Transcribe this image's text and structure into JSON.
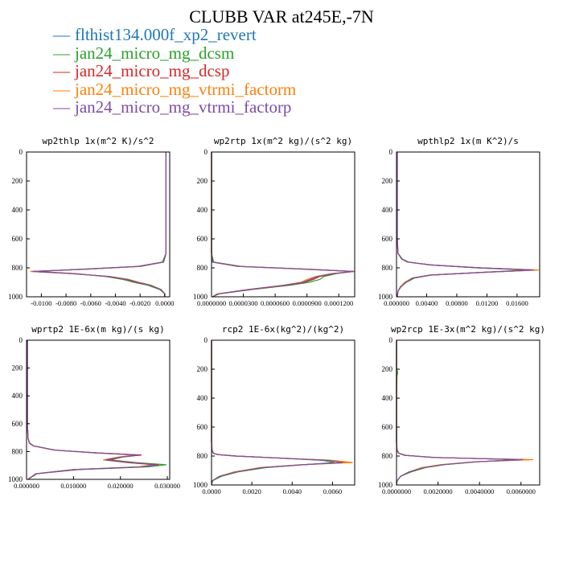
{
  "title": "CLUBB VAR at245E,-7N",
  "legend": [
    {
      "label": "flthist134.000f_xp2_revert",
      "color": "#1f77b4"
    },
    {
      "label": "jan24_micro_mg_dcsm",
      "color": "#2ca02c"
    },
    {
      "label": "jan24_micro_mg_dcsp",
      "color": "#d62728"
    },
    {
      "label": "jan24_micro_mg_vtrmi_factorm",
      "color": "#ff7f0e"
    },
    {
      "label": "jan24_micro_mg_vtrmi_factorp",
      "color": "#7b4ea6"
    }
  ],
  "chart_data": [
    {
      "type": "line",
      "title": "wp2thlp  1x(m^2 K)/s^2",
      "xlim": [
        -0.0112,
        0.0004
      ],
      "ylim": [
        1000,
        0
      ],
      "xticks": [
        -0.01,
        -0.008,
        -0.006,
        -0.004,
        -0.002,
        0
      ],
      "xticklabels": [
        "-0.0100",
        "-0.0080",
        "-0.0060",
        "-0.0040",
        "-0.0020",
        "0.0000"
      ],
      "yticks": [
        0,
        200,
        400,
        600,
        800,
        1000
      ],
      "yticklabels": [
        "0",
        "200",
        "400",
        "600",
        "800",
        "1000"
      ],
      "y": [
        0,
        100,
        300,
        500,
        700,
        760,
        790,
        810,
        825,
        840,
        860,
        880,
        900,
        920,
        950,
        980,
        1000
      ],
      "series": [
        {
          "values": [
            0.0001,
            0.0001,
            0.0001,
            0.0001,
            0.0001,
            -0.0001,
            -0.002,
            -0.0065,
            -0.0108,
            -0.0075,
            -0.0045,
            -0.003,
            -0.0022,
            -0.0012,
            -0.0003,
            0,
            0
          ]
        },
        {
          "values": [
            0.0001,
            0.0001,
            0.0001,
            0.0001,
            0.0001,
            -0.0002,
            -0.0022,
            -0.007,
            -0.0104,
            -0.0072,
            -0.0048,
            -0.0034,
            -0.0025,
            -0.0014,
            -0.0004,
            0,
            0
          ]
        },
        {
          "values": [
            0.0001,
            0.0001,
            0.0001,
            0.0001,
            0.0001,
            -0.0001,
            -0.0021,
            -0.0066,
            -0.0106,
            -0.0074,
            -0.0046,
            -0.0031,
            -0.0023,
            -0.0012,
            -0.0003,
            0,
            0
          ]
        },
        {
          "values": [
            0.0001,
            0.0001,
            0.0001,
            0.0001,
            0.0001,
            -0.0001,
            -0.0019,
            -0.0064,
            -0.0109,
            -0.0077,
            -0.0044,
            -0.0029,
            -0.0021,
            -0.0011,
            -0.0003,
            0,
            0
          ]
        },
        {
          "values": [
            0.0001,
            0.0001,
            0.0001,
            0.0001,
            0.0001,
            -0.0001,
            -0.002,
            -0.0067,
            -0.0107,
            -0.0076,
            -0.0045,
            -0.003,
            -0.0022,
            -0.0012,
            -0.0003,
            0,
            0
          ]
        }
      ]
    },
    {
      "type": "line",
      "title": "wp2rtp  1x(m^2 kg)/(s^2 kg)",
      "xlim": [
        0,
        0.000135
      ],
      "ylim": [
        1000,
        0
      ],
      "xticks": [
        0,
        3e-05,
        6e-05,
        9e-05,
        0.00012
      ],
      "xticklabels": [
        "0.0000000",
        "0.0000300",
        "0.0000600",
        "0.0000900",
        "0.0001200"
      ],
      "yticks": [
        0,
        200,
        400,
        600,
        800,
        1000
      ],
      "yticklabels": [
        "0",
        "200",
        "400",
        "600",
        "800",
        "1000"
      ],
      "y": [
        0,
        100,
        300,
        500,
        700,
        760,
        790,
        810,
        825,
        840,
        860,
        880,
        900,
        920,
        950,
        980,
        1000
      ],
      "series": [
        {
          "values": [
            0,
            0,
            0,
            0,
            0,
            1e-06,
            2.5e-05,
            9e-05,
            0.000134,
            0.000115,
            0.0001,
            9.4e-05,
            8.7e-05,
            7e-05,
            3.5e-05,
            6e-06,
            1e-06
          ]
        },
        {
          "values": [
            0,
            0,
            0,
            0,
            0,
            2e-06,
            2.8e-05,
            9.5e-05,
            0.000133,
            0.000118,
            0.000106,
            0.000102,
            9.2e-05,
            7.4e-05,
            3.8e-05,
            7e-06,
            1e-06
          ]
        },
        {
          "values": [
            0,
            0,
            0,
            0,
            0,
            1e-06,
            2.6e-05,
            9.2e-05,
            0.000134,
            0.000116,
            0.000102,
            9.6e-05,
            8.8e-05,
            7.1e-05,
            3.6e-05,
            6e-06,
            1e-06
          ]
        },
        {
          "values": [
            0,
            0,
            0,
            0,
            0,
            1e-06,
            2.4e-05,
            8.8e-05,
            0.000135,
            0.000113,
            9.8e-05,
            9e-05,
            8.4e-05,
            6.8e-05,
            3.4e-05,
            5e-06,
            1e-06
          ]
        },
        {
          "values": [
            0,
            0,
            0,
            0,
            0,
            1e-06,
            2.5e-05,
            9e-05,
            0.000134,
            0.000114,
            0.0001,
            9.3e-05,
            8.6e-05,
            6.9e-05,
            3.5e-05,
            6e-06,
            1e-06
          ]
        }
      ]
    },
    {
      "type": "line",
      "title": "wpthlp2  1x(m K^2)/s",
      "xlim": [
        0,
        0.019
      ],
      "ylim": [
        1000,
        0
      ],
      "xticks": [
        0,
        0.004,
        0.008,
        0.012,
        0.016
      ],
      "xticklabels": [
        "0.000000",
        "0.00400",
        "0.00800",
        "0.01200",
        "0.01600"
      ],
      "yticks": [
        0,
        200,
        400,
        600,
        800,
        1000
      ],
      "yticklabels": [
        "0",
        "200",
        "400",
        "600",
        "800",
        "1000"
      ],
      "y": [
        0,
        200,
        400,
        600,
        700,
        740,
        760,
        780,
        800,
        815,
        830,
        850,
        870,
        900,
        930,
        960,
        1000
      ],
      "series": [
        {
          "values": [
            0.0001,
            0.0001,
            0.0001,
            0.0001,
            0.0002,
            0.0007,
            0.0015,
            0.0045,
            0.011,
            0.0185,
            0.012,
            0.0045,
            0.0022,
            0.0012,
            0.0006,
            0.0002,
            0.0001
          ]
        },
        {
          "values": [
            0.0001,
            0.0001,
            0.0001,
            0.0001,
            0.0002,
            0.0008,
            0.0016,
            0.0046,
            0.0105,
            0.0172,
            0.0118,
            0.0046,
            0.0024,
            0.0013,
            0.0006,
            0.0002,
            0.0001
          ]
        },
        {
          "values": [
            0.0001,
            0.0001,
            0.0001,
            0.0001,
            0.0002,
            0.0007,
            0.0015,
            0.0045,
            0.011,
            0.0186,
            0.0121,
            0.0045,
            0.0022,
            0.0012,
            0.0006,
            0.0002,
            0.0001
          ]
        },
        {
          "values": [
            0.0001,
            0.0001,
            0.0001,
            0.0001,
            0.0002,
            0.0007,
            0.0014,
            0.0044,
            0.0112,
            0.0189,
            0.0123,
            0.0044,
            0.0021,
            0.0011,
            0.0005,
            0.0002,
            0.0001
          ]
        },
        {
          "values": [
            0.0001,
            0.0001,
            0.0001,
            0.0001,
            0.0002,
            0.0007,
            0.0015,
            0.0045,
            0.0109,
            0.0183,
            0.012,
            0.0045,
            0.0022,
            0.0012,
            0.0006,
            0.0002,
            0.0001
          ]
        }
      ]
    },
    {
      "type": "line",
      "title": "wprtp2  1E-6x(m kg)/(s kg)",
      "xlim": [
        0,
        0.0305
      ],
      "ylim": [
        1000,
        0
      ],
      "xticks": [
        0,
        0.01,
        0.02,
        0.03
      ],
      "xticklabels": [
        "0.000000",
        "0.010000",
        "0.020000",
        "0.030000"
      ],
      "yticks": [
        0,
        200,
        400,
        600,
        800,
        1000
      ],
      "yticklabels": [
        "0",
        "200",
        "400",
        "600",
        "800",
        "1000"
      ],
      "y": [
        0,
        200,
        400,
        600,
        700,
        740,
        760,
        790,
        810,
        825,
        840,
        860,
        880,
        895,
        910,
        930,
        960,
        1000
      ],
      "series": [
        {
          "values": [
            0.0002,
            0.0002,
            0.0002,
            0.0002,
            0.0003,
            0.0006,
            0.0015,
            0.006,
            0.015,
            0.024,
            0.02,
            0.017,
            0.022,
            0.0275,
            0.024,
            0.01,
            0.002,
            0.0003
          ]
        },
        {
          "values": [
            0.0002,
            0.0002,
            0.0002,
            0.0002,
            0.0003,
            0.0007,
            0.0016,
            0.0062,
            0.0148,
            0.0235,
            0.0205,
            0.0178,
            0.0235,
            0.0298,
            0.026,
            0.011,
            0.0022,
            0.0003
          ]
        },
        {
          "values": [
            0.0002,
            0.0002,
            0.0002,
            0.0002,
            0.0003,
            0.0006,
            0.0015,
            0.0061,
            0.0152,
            0.0245,
            0.0202,
            0.0172,
            0.0225,
            0.0282,
            0.0245,
            0.0102,
            0.002,
            0.0003
          ]
        },
        {
          "values": [
            0.0002,
            0.0002,
            0.0002,
            0.0002,
            0.0003,
            0.0006,
            0.0014,
            0.0058,
            0.0145,
            0.0232,
            0.0195,
            0.0163,
            0.0215,
            0.0272,
            0.0238,
            0.0098,
            0.0019,
            0.0003
          ]
        },
        {
          "values": [
            0.0002,
            0.0002,
            0.0002,
            0.0002,
            0.0003,
            0.0006,
            0.0015,
            0.006,
            0.015,
            0.0238,
            0.02,
            0.0168,
            0.022,
            0.0278,
            0.0242,
            0.0101,
            0.002,
            0.0003
          ]
        }
      ]
    },
    {
      "type": "line",
      "title": "rcp2  1E-6x(kg^2)/(kg^2)",
      "xlim": [
        0,
        0.0071
      ],
      "ylim": [
        1000,
        0
      ],
      "xticks": [
        0,
        0.002,
        0.004,
        0.006
      ],
      "xticklabels": [
        "0.0000",
        "0.0020",
        "0.0040",
        "0.0060"
      ],
      "yticks": [
        0,
        200,
        400,
        600,
        800,
        1000
      ],
      "yticklabels": [
        "0",
        "200",
        "400",
        "600",
        "800",
        "1000"
      ],
      "y": [
        0,
        200,
        400,
        600,
        700,
        760,
        780,
        790,
        800,
        815,
        830,
        845,
        860,
        880,
        910,
        940,
        970,
        1000
      ],
      "series": [
        {
          "values": [
            0,
            0,
            0,
            0,
            0,
            2e-05,
            8e-05,
            0.0003,
            0.0012,
            0.0035,
            0.0058,
            0.0066,
            0.0045,
            0.0025,
            0.0012,
            0.0004,
            5e-05,
            0
          ]
        },
        {
          "values": [
            0,
            0,
            0,
            0,
            0,
            3e-05,
            0.0001,
            0.00035,
            0.00125,
            0.0034,
            0.0055,
            0.0061,
            0.0046,
            0.0027,
            0.0013,
            0.0005,
            6e-05,
            0
          ]
        },
        {
          "values": [
            0,
            0,
            0,
            0,
            0,
            2e-05,
            8e-05,
            0.0003,
            0.0012,
            0.0036,
            0.0059,
            0.0067,
            0.0045,
            0.0025,
            0.0012,
            0.0004,
            5e-05,
            0
          ]
        },
        {
          "values": [
            0,
            0,
            0,
            0,
            0,
            2e-05,
            7e-05,
            0.00028,
            0.0011,
            0.0036,
            0.006,
            0.007,
            0.0044,
            0.0024,
            0.0011,
            0.0004,
            5e-05,
            0
          ]
        },
        {
          "values": [
            0,
            0,
            0,
            0,
            0,
            2e-05,
            8e-05,
            0.0003,
            0.0012,
            0.0035,
            0.0058,
            0.0065,
            0.0045,
            0.0025,
            0.0012,
            0.0004,
            5e-05,
            0
          ]
        }
      ]
    },
    {
      "type": "line",
      "title": "wp2rcp  1E-3x(m^2 kg)/(s^2 kg)",
      "xlim": [
        0,
        0.0069
      ],
      "ylim": [
        1000,
        0
      ],
      "xticks": [
        0,
        0.002,
        0.004,
        0.006
      ],
      "xticklabels": [
        "0.0000000",
        "0.0020000",
        "0.0040000",
        "0.0060000"
      ],
      "yticks": [
        0,
        200,
        400,
        600,
        800,
        1000
      ],
      "yticklabels": [
        "0",
        "200",
        "400",
        "600",
        "800",
        "1000"
      ],
      "y": [
        0,
        200,
        220,
        250,
        400,
        600,
        700,
        760,
        780,
        795,
        810,
        825,
        840,
        860,
        880,
        910,
        940,
        970,
        1000
      ],
      "series": [
        {
          "values": [
            0,
            0,
            0,
            0,
            0,
            0,
            0,
            2e-05,
            0.0001,
            0.0004,
            0.0018,
            0.0062,
            0.0038,
            0.0022,
            0.0013,
            0.0006,
            0.0002,
            3e-05,
            0
          ]
        },
        {
          "values": [
            0,
            0,
            6e-05,
            2e-05,
            0,
            0,
            0,
            3e-05,
            0.00012,
            0.00045,
            0.0019,
            0.0058,
            0.0039,
            0.0023,
            0.0014,
            0.0007,
            0.0002,
            4e-05,
            0
          ]
        },
        {
          "values": [
            0,
            0,
            0,
            0,
            0,
            0,
            0,
            2e-05,
            0.0001,
            0.0004,
            0.0018,
            0.0063,
            0.0038,
            0.0022,
            0.0013,
            0.0006,
            0.0002,
            3e-05,
            0
          ]
        },
        {
          "values": [
            0,
            0,
            0,
            0,
            0,
            0,
            0,
            2e-05,
            9e-05,
            0.00038,
            0.0017,
            0.0066,
            0.0037,
            0.0021,
            0.0012,
            0.0006,
            0.0002,
            3e-05,
            0
          ]
        },
        {
          "values": [
            0,
            0,
            0,
            0,
            0,
            0,
            0,
            2e-05,
            0.0001,
            0.0004,
            0.0018,
            0.0061,
            0.0038,
            0.0022,
            0.0013,
            0.0006,
            0.0002,
            3e-05,
            0
          ]
        }
      ]
    }
  ]
}
